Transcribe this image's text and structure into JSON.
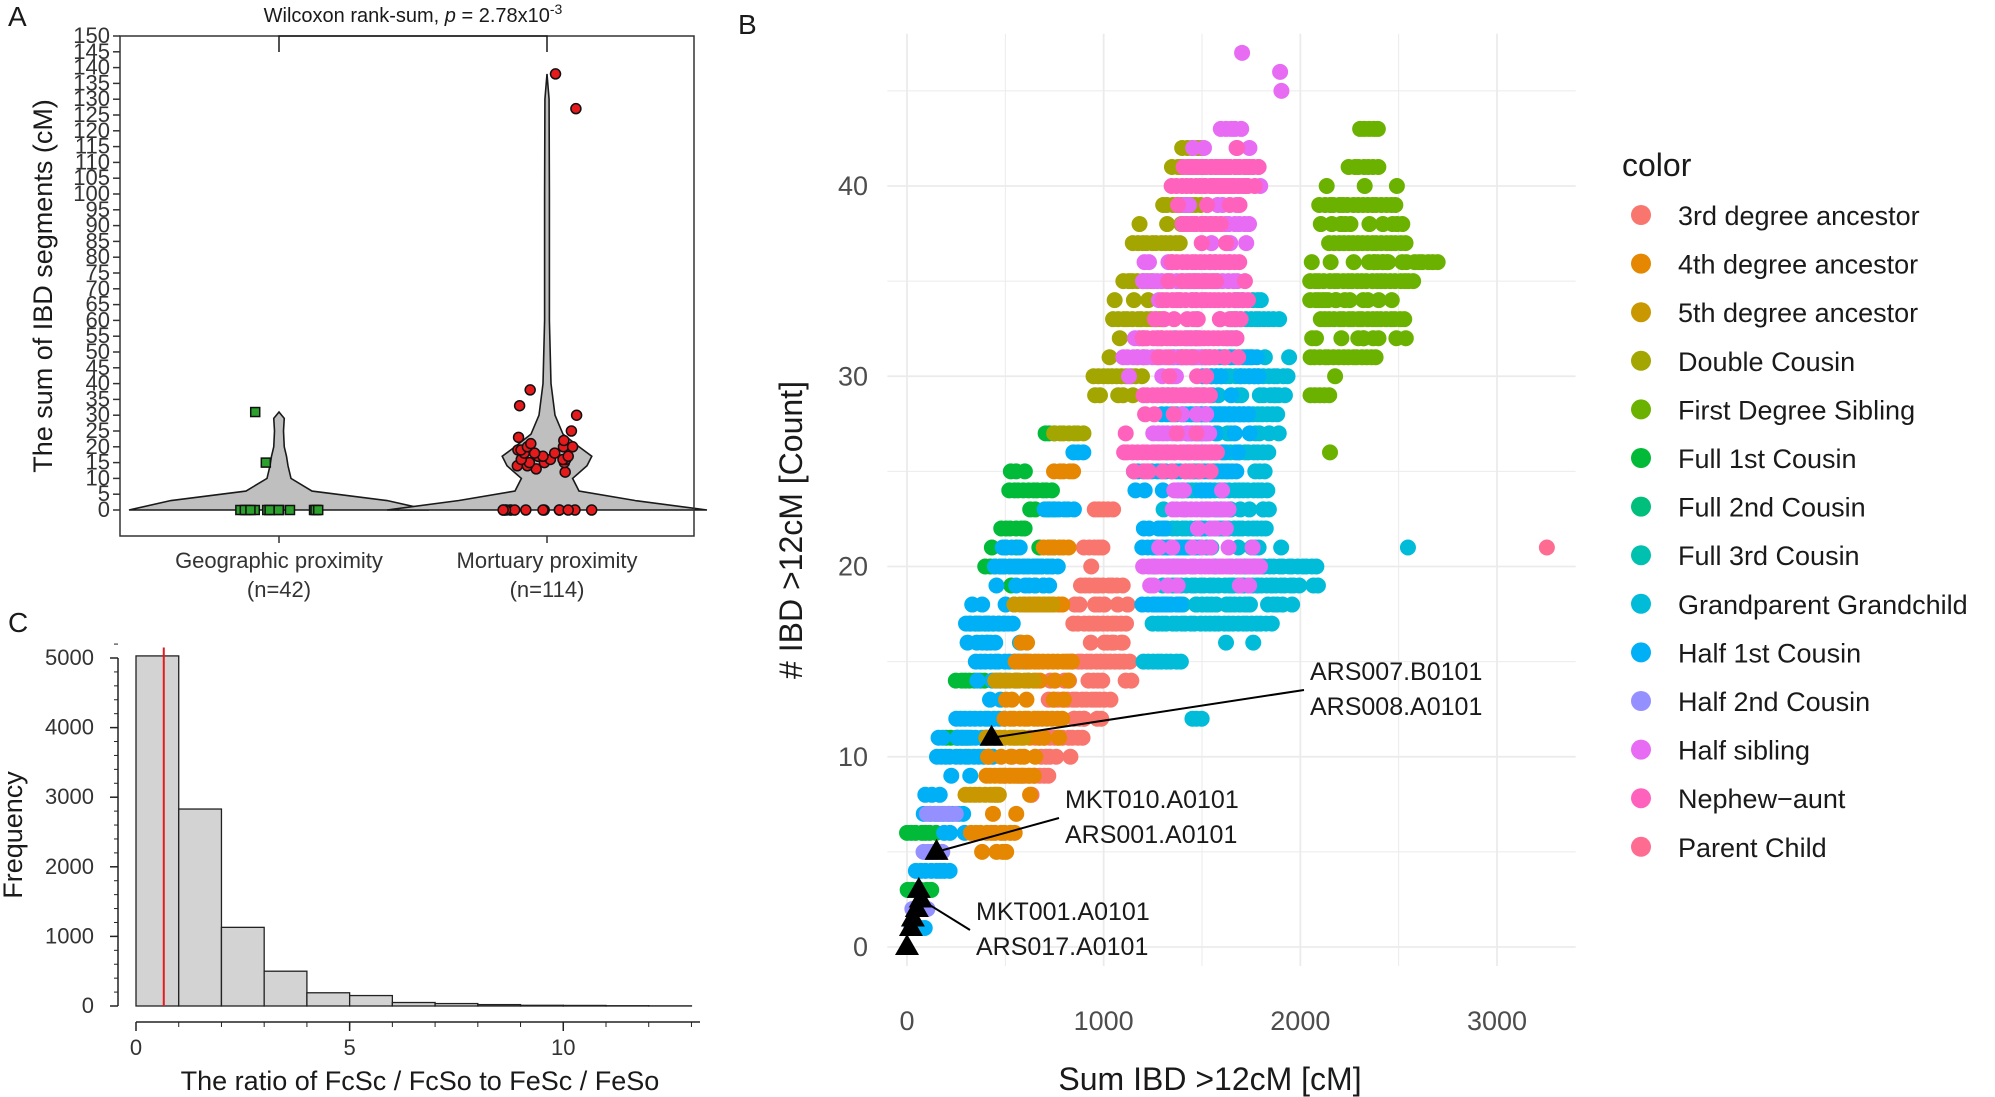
{
  "panels": {
    "a": {
      "letter": "A"
    },
    "b": {
      "letter": "B"
    },
    "c": {
      "letter": "C"
    }
  },
  "chart_data": [
    {
      "panel": "A",
      "type": "violin",
      "annotation": "Wilcoxon rank-sum, p = 2.78x10-3",
      "annotation_parts": {
        "prefix": "Wilcoxon rank-sum, ",
        "p": "p",
        "eq": " = 2.78x10",
        "exp": "-3"
      },
      "xlabel": "",
      "ylabel": "The sum of IBD segments (cM)",
      "ylim": [
        0,
        150
      ],
      "yticks": [
        0,
        5,
        10,
        15,
        20,
        25,
        30,
        35,
        40,
        45,
        50,
        55,
        60,
        65,
        70,
        75,
        80,
        85,
        90,
        95,
        100,
        105,
        110,
        115,
        120,
        125,
        130,
        135,
        140,
        145,
        150
      ],
      "groups": [
        {
          "label": "Geographic proximity",
          "n_label": "(n=42)",
          "point_color": "#2ca02c",
          "marker": "square",
          "points": [
            0,
            0,
            0,
            0,
            0,
            0,
            0,
            0,
            0,
            0,
            0,
            0,
            0,
            0,
            0,
            15,
            31
          ],
          "violin": [
            [
              0,
              1.0
            ],
            [
              3,
              0.72
            ],
            [
              6,
              0.22
            ],
            [
              10,
              0.08
            ],
            [
              14,
              0.06
            ],
            [
              17,
              0.05
            ],
            [
              20,
              0.035
            ],
            [
              25,
              0.03
            ],
            [
              29,
              0.035
            ],
            [
              31,
              0.0
            ]
          ]
        },
        {
          "label": "Mortuary proximity",
          "n_label": "(n=114)",
          "point_color": "#e41a1c",
          "marker": "circle",
          "points": [
            0,
            0,
            0,
            0,
            0,
            0,
            0,
            0,
            0,
            0,
            0,
            0,
            0,
            0,
            0,
            12,
            13,
            14,
            14,
            15,
            15,
            15,
            16,
            16,
            16,
            16,
            17,
            17,
            17,
            18,
            18,
            18,
            19,
            19,
            20,
            20,
            20,
            21,
            22,
            23,
            25,
            30,
            33,
            38,
            127,
            138
          ],
          "violin": [
            [
              0,
              1.0
            ],
            [
              3,
              0.55
            ],
            [
              6,
              0.2
            ],
            [
              10,
              0.16
            ],
            [
              14,
              0.25
            ],
            [
              17,
              0.28
            ],
            [
              20,
              0.2
            ],
            [
              24,
              0.1
            ],
            [
              30,
              0.05
            ],
            [
              40,
              0.025
            ],
            [
              60,
              0.015
            ],
            [
              100,
              0.015
            ],
            [
              130,
              0.013
            ],
            [
              138,
              0.0
            ]
          ]
        }
      ]
    },
    {
      "panel": "C",
      "type": "histogram",
      "xlabel": "The ratio of FcSc / FcSo to FeSc / FeSo",
      "ylabel": "Frequency",
      "xlim": [
        0,
        13
      ],
      "ylim": [
        0,
        5200
      ],
      "xticks": [
        0,
        5,
        10
      ],
      "yticks": [
        0,
        1000,
        2000,
        3000,
        4000,
        5000
      ],
      "bins": [
        [
          0,
          1
        ],
        [
          1,
          2
        ],
        [
          2,
          3
        ],
        [
          3,
          4
        ],
        [
          4,
          5
        ],
        [
          5,
          6
        ],
        [
          6,
          7
        ],
        [
          7,
          8
        ],
        [
          8,
          9
        ],
        [
          9,
          10
        ],
        [
          10,
          11
        ],
        [
          11,
          12
        ],
        [
          12,
          13
        ]
      ],
      "counts": [
        5030,
        2830,
        1130,
        500,
        190,
        150,
        50,
        35,
        20,
        10,
        8,
        4,
        2
      ],
      "vline": 0.65,
      "vline_color": "#e41a1c",
      "bar_color": "#d3d3d3"
    },
    {
      "panel": "B",
      "type": "scatter",
      "xlabel": "Sum IBD >12cM [cM]",
      "ylabel": "# IBD >12cM [Count]",
      "xlim": [
        -100,
        3400
      ],
      "ylim": [
        -1,
        48
      ],
      "xticks": [
        0,
        1000,
        2000,
        3000
      ],
      "yticks": [
        0,
        10,
        20,
        30,
        40
      ],
      "grid": true,
      "legend": {
        "title": "color",
        "placement": "right",
        "entries": [
          {
            "name": "3rd degree ancestor",
            "color": "#F8766D"
          },
          {
            "name": "4th degree ancestor",
            "color": "#E58700"
          },
          {
            "name": "5th degree ancestor",
            "color": "#C99800"
          },
          {
            "name": "Double Cousin",
            "color": "#A3A500"
          },
          {
            "name": "First Degree Sibling",
            "color": "#6BB100"
          },
          {
            "name": "Full 1st Cousin",
            "color": "#00BA38"
          },
          {
            "name": "Full 2nd Cousin",
            "color": "#00BF7D"
          },
          {
            "name": "Full 3rd Cousin",
            "color": "#00C0AF"
          },
          {
            "name": "Grandparent Grandchild",
            "color": "#00BCD8"
          },
          {
            "name": "Half 1st Cousin",
            "color": "#00B0F6"
          },
          {
            "name": "Half 2nd Cousin",
            "color": "#9590FF"
          },
          {
            "name": "Half sibling",
            "color": "#E76BF3"
          },
          {
            "name": "Nephew−aunt",
            "color": "#FF62BC"
          },
          {
            "name": "Parent Child",
            "color": "#FF6C91"
          }
        ]
      },
      "clusters": [
        {
          "series": "Full 1st Cousin",
          "xfrom": [
            [
              3,
              0,
              120
            ],
            [
              6,
              0,
              160
            ],
            [
              11,
              200,
              320
            ],
            [
              14,
              250,
              400
            ],
            [
              17,
              320,
              500
            ],
            [
              20,
              400,
              750
            ],
            [
              22,
              480,
              600
            ],
            [
              24,
              520,
              750
            ],
            [
              27,
              700,
              760
            ]
          ]
        },
        {
          "series": "Half 1st Cousin",
          "xfrom": [
            [
              1,
              20,
              100
            ],
            [
              4,
              50,
              220
            ],
            [
              7,
              90,
              300
            ],
            [
              10,
              150,
              450
            ],
            [
              12,
              250,
              500
            ],
            [
              15,
              350,
              620
            ],
            [
              17,
              300,
              560
            ],
            [
              20,
              450,
              780
            ],
            [
              23,
              700,
              850
            ],
            [
              26,
              850,
              900
            ]
          ]
        },
        {
          "series": "3rd degree ancestor",
          "xfrom": [
            [
              9,
              480,
              720
            ],
            [
              11,
              650,
              900
            ],
            [
              13,
              720,
              1050
            ],
            [
              15,
              820,
              1150
            ],
            [
              17,
              850,
              1120
            ],
            [
              19,
              880,
              1100
            ],
            [
              21,
              900,
              1000
            ],
            [
              23,
              950,
              1050
            ]
          ]
        },
        {
          "series": "4th degree ancestor",
          "xfrom": [
            [
              6,
              330,
              560
            ],
            [
              9,
              400,
              650
            ],
            [
              12,
              500,
              800
            ],
            [
              15,
              550,
              850
            ],
            [
              18,
              600,
              800
            ],
            [
              21,
              700,
              820
            ],
            [
              25,
              750,
              850
            ]
          ]
        },
        {
          "series": "5th degree ancestor",
          "xfrom": [
            [
              8,
              300,
              480
            ],
            [
              11,
              400,
              600
            ],
            [
              14,
              450,
              650
            ],
            [
              18,
              550,
              750
            ]
          ]
        },
        {
          "series": "Double Cousin",
          "xfrom": [
            [
              27,
              750,
              900
            ],
            [
              30,
              950,
              1200
            ],
            [
              33,
              1050,
              1300
            ],
            [
              35,
              1100,
              1250
            ],
            [
              37,
              1150,
              1400
            ],
            [
              39,
              1300,
              1500
            ],
            [
              41,
              1350,
              1550
            ],
            [
              42,
              1400,
              1500
            ]
          ]
        },
        {
          "series": "First Degree Sibling",
          "xfrom": [
            [
              29,
              2050,
              2150
            ],
            [
              31,
              2050,
              2400
            ],
            [
              33,
              2100,
              2550
            ],
            [
              35,
              2050,
              2600
            ],
            [
              37,
              2150,
              2550
            ],
            [
              39,
              2100,
              2500
            ],
            [
              41,
              2250,
              2400
            ],
            [
              43,
              2300,
              2400
            ],
            [
              36,
              2600,
              2700
            ],
            [
              26,
              2150,
              2150
            ],
            [
              34,
              2050,
              2150
            ]
          ]
        },
        {
          "series": "Grandparent Grandchild",
          "xfrom": [
            [
              12,
              1450,
              1500
            ],
            [
              15,
              1200,
              1400
            ],
            [
              17,
              1250,
              1850
            ],
            [
              19,
              1300,
              1950
            ],
            [
              20,
              1650,
              2100
            ],
            [
              22,
              1300,
              1850
            ],
            [
              24,
              1400,
              1850
            ],
            [
              26,
              1500,
              1850
            ],
            [
              28,
              1450,
              1900
            ],
            [
              30,
              1550,
              1950
            ],
            [
              33,
              1650,
              1900
            ],
            [
              21,
              2550,
              2550
            ]
          ]
        },
        {
          "series": "Half 1st Cousin",
          "xfrom": [
            [
              18,
              1200,
              1400
            ],
            [
              21,
              1200,
              1500
            ],
            [
              25,
              1150,
              1700
            ],
            [
              28,
              1300,
              1750
            ],
            [
              31,
              1350,
              1800
            ]
          ]
        },
        {
          "series": "Half sibling",
          "xfrom": [
            [
              20,
              1200,
              1800
            ],
            [
              23,
              1350,
              1650
            ],
            [
              27,
              1250,
              1550
            ],
            [
              31,
              1100,
              1550
            ],
            [
              35,
              1200,
              1700
            ],
            [
              38,
              1400,
              1750
            ],
            [
              41,
              1450,
              1800
            ],
            [
              43,
              1600,
              1700
            ],
            [
              45,
              1900,
              1900
            ],
            [
              46,
              1900,
              1900
            ],
            [
              47,
              1700,
              1700
            ]
          ]
        },
        {
          "series": "Nephew−aunt",
          "xfrom": [
            [
              26,
              1100,
              1600
            ],
            [
              29,
              1200,
              1550
            ],
            [
              32,
              1200,
              1700
            ],
            [
              34,
              1300,
              1750
            ],
            [
              36,
              1350,
              1700
            ],
            [
              38,
              1400,
              1600
            ],
            [
              40,
              1350,
              1750
            ],
            [
              41,
              1450,
              1800
            ]
          ]
        },
        {
          "series": "Parent Child",
          "xfrom": [
            [
              21,
              3250,
              3250
            ]
          ]
        },
        {
          "series": "Half 2nd Cousin",
          "xfrom": [
            [
              2,
              30,
              120
            ],
            [
              5,
              80,
              180
            ],
            [
              7,
              100,
              250
            ]
          ]
        }
      ],
      "markers": [
        {
          "x": 430,
          "y": 11,
          "label1": "ARS007.B0101",
          "label2": "ARS008.A0101"
        },
        {
          "x": 150,
          "y": 5,
          "label1": "MKT010.A0101",
          "label2": "ARS001.A0101"
        },
        {
          "x": 70,
          "y": 2.5,
          "label1": "MKT001.A0101",
          "label2": "ARS017.A0101"
        }
      ],
      "extra_markers": [
        [
          0,
          0
        ],
        [
          20,
          1
        ],
        [
          50,
          2
        ],
        [
          60,
          3
        ],
        [
          30,
          1.5
        ]
      ]
    }
  ]
}
